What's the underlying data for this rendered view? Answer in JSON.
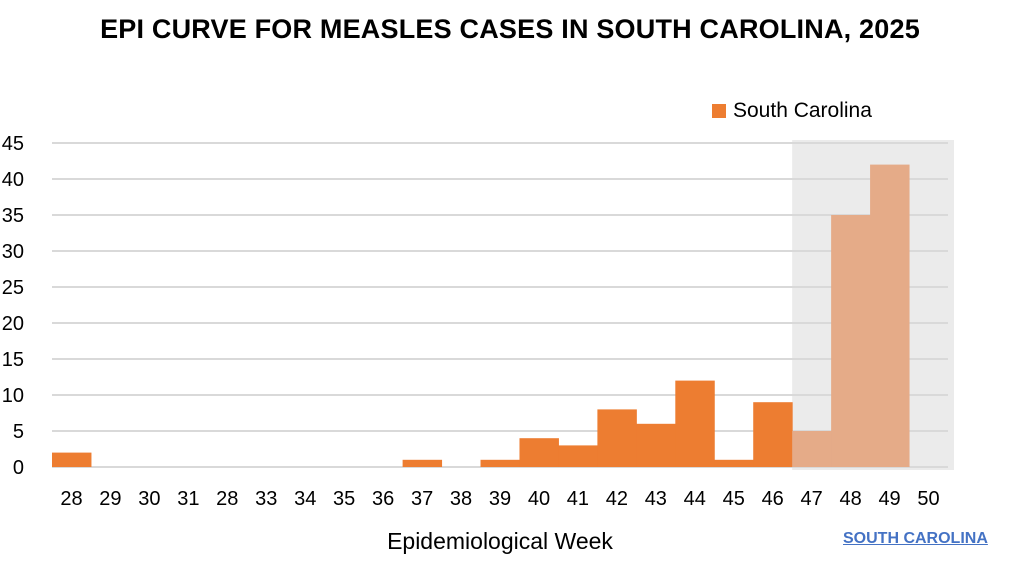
{
  "chart_data": {
    "type": "bar",
    "title": "EPI CURVE FOR MEASLES CASES IN SOUTH CAROLINA, 2025",
    "xlabel": "Epidemiological Week",
    "ylabel": "",
    "ylim": [
      0,
      45
    ],
    "yticks": [
      0,
      5,
      10,
      15,
      20,
      25,
      30,
      35,
      40,
      45
    ],
    "grid": true,
    "legend": {
      "position": "top-right",
      "entries": [
        "South Carolina"
      ]
    },
    "categories": [
      "28",
      "29",
      "30",
      "31",
      "28",
      "33",
      "34",
      "35",
      "36",
      "37",
      "38",
      "39",
      "40",
      "41",
      "42",
      "43",
      "44",
      "45",
      "46",
      "47",
      "48",
      "49",
      "50"
    ],
    "series": [
      {
        "name": "South Carolina",
        "values": [
          2,
          0,
          0,
          0,
          0,
          0,
          0,
          0,
          0,
          1,
          0,
          1,
          4,
          3,
          8,
          6,
          12,
          1,
          9,
          5,
          35,
          42,
          0
        ]
      }
    ],
    "shaded_from_category_index": 19,
    "shaded_note": "weeks 47-50 shaded (lighter bars)",
    "colors": {
      "bar": "#ED7D31",
      "bar_shaded": "#E5AB88",
      "shade_bg": "#EBEBEB",
      "grid": "#D9D9D9"
    }
  },
  "footer_link": "SOUTH CAROLINA"
}
